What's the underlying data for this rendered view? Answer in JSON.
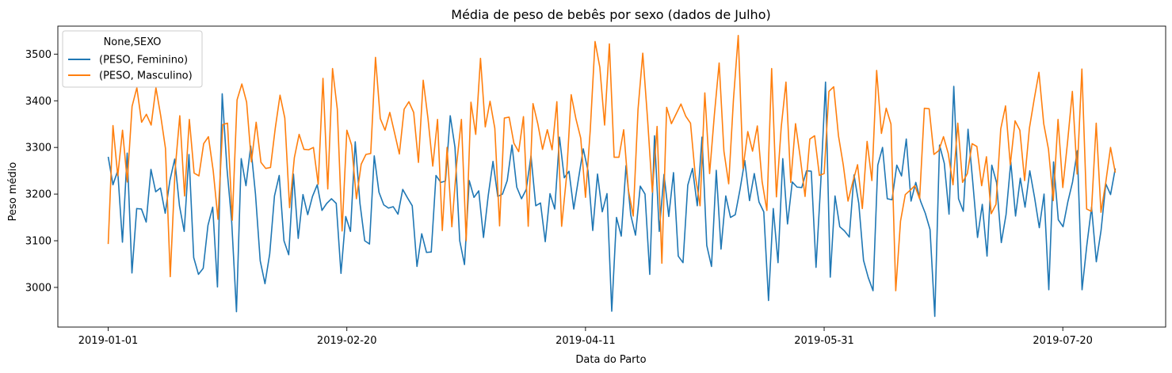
{
  "chart_data": {
    "type": "line",
    "title": "Média de peso de bebês por sexo (dados de Julho)",
    "xlabel": "Data do Parto",
    "ylabel": "Peso médio",
    "x_start": "2019-01-01",
    "x_end": "2019-07-31",
    "x_ticks": [
      "2019-01-01",
      "2019-02-20",
      "2019-04-11",
      "2019-05-31",
      "2019-07-20"
    ],
    "y_ticks": [
      3000,
      3100,
      3200,
      3300,
      3400,
      3500
    ],
    "ylim": [
      2915,
      3560
    ],
    "grid": false,
    "legend": {
      "title": "None,SEXO",
      "placement": "upper-left"
    },
    "series": [
      {
        "name": "(PESO, Feminino)",
        "color": "#1f77b4",
        "values": [
          3280,
          3220,
          3250,
          3097,
          3288,
          3031,
          3169,
          3168,
          3140,
          3253,
          3205,
          3213,
          3159,
          3230,
          3275,
          3175,
          3120,
          3285,
          3064,
          3028,
          3041,
          3133,
          3172,
          3001,
          3415,
          3255,
          3140,
          2948,
          3276,
          3218,
          3303,
          3200,
          3057,
          3008,
          3072,
          3196,
          3240,
          3100,
          3070,
          3243,
          3105,
          3199,
          3156,
          3195,
          3220,
          3165,
          3180,
          3190,
          3180,
          3030,
          3152,
          3120,
          3312,
          3180,
          3100,
          3093,
          3282,
          3204,
          3177,
          3170,
          3173,
          3157,
          3210,
          3192,
          3175,
          3045,
          3115,
          3075,
          3076,
          3240,
          3225,
          3228,
          3368,
          3300,
          3100,
          3049,
          3229,
          3193,
          3207,
          3107,
          3197,
          3270,
          3195,
          3200,
          3229,
          3305,
          3215,
          3190,
          3210,
          3282,
          3175,
          3181,
          3098,
          3201,
          3168,
          3322,
          3235,
          3249,
          3168,
          3233,
          3297,
          3250,
          3122,
          3243,
          3162,
          3201,
          2949,
          3150,
          3110,
          3261,
          3155,
          3112,
          3217,
          3200,
          3028,
          3325,
          3120,
          3242,
          3152,
          3246,
          3067,
          3053,
          3219,
          3255,
          3175,
          3322,
          3090,
          3045,
          3251,
          3082,
          3196,
          3150,
          3156,
          3210,
          3272,
          3186,
          3244,
          3183,
          3162,
          2972,
          3169,
          3053,
          3276,
          3136,
          3226,
          3215,
          3214,
          3250,
          3249,
          3043,
          3225,
          3440,
          3022,
          3196,
          3130,
          3121,
          3108,
          3241,
          3180,
          3058,
          3021,
          2993,
          3262,
          3300,
          3190,
          3188,
          3262,
          3239,
          3318,
          3185,
          3225,
          3185,
          3159,
          3124,
          2938,
          3305,
          3266,
          3157,
          3431,
          3190,
          3163,
          3339,
          3225,
          3107,
          3178,
          3067,
          3262,
          3225,
          3096,
          3156,
          3269,
          3153,
          3234,
          3172,
          3250,
          3193,
          3128,
          3200,
          2995,
          3269,
          3145,
          3130,
          3183,
          3226,
          3293,
          2995,
          3090,
          3172,
          3055,
          3122,
          3222,
          3199,
          3255
        ]
      },
      {
        "name": "(PESO, Masculino)",
        "color": "#ff7f0e",
        "values": [
          3093,
          3347,
          3239,
          3337,
          3226,
          3388,
          3428,
          3354,
          3371,
          3348,
          3428,
          3368,
          3298,
          3023,
          3250,
          3368,
          3196,
          3360,
          3245,
          3239,
          3308,
          3323,
          3250,
          3146,
          3349,
          3352,
          3144,
          3402,
          3436,
          3397,
          3269,
          3354,
          3268,
          3255,
          3257,
          3341,
          3412,
          3363,
          3171,
          3278,
          3328,
          3296,
          3295,
          3300,
          3221,
          3448,
          3211,
          3469,
          3382,
          3121,
          3337,
          3305,
          3190,
          3264,
          3285,
          3287,
          3493,
          3362,
          3337,
          3375,
          3331,
          3286,
          3382,
          3398,
          3375,
          3268,
          3444,
          3362,
          3260,
          3360,
          3122,
          3300,
          3130,
          3264,
          3360,
          3100,
          3397,
          3328,
          3491,
          3344,
          3399,
          3341,
          3132,
          3363,
          3365,
          3309,
          3291,
          3366,
          3131,
          3394,
          3351,
          3296,
          3338,
          3295,
          3398,
          3131,
          3235,
          3413,
          3361,
          3320,
          3193,
          3338,
          3527,
          3472,
          3348,
          3522,
          3279,
          3279,
          3338,
          3208,
          3153,
          3381,
          3502,
          3361,
          3204,
          3345,
          3052,
          3386,
          3351,
          3372,
          3393,
          3367,
          3352,
          3240,
          3175,
          3417,
          3244,
          3370,
          3481,
          3292,
          3222,
          3403,
          3540,
          3255,
          3334,
          3292,
          3346,
          3227,
          3165,
          3469,
          3194,
          3343,
          3440,
          3225,
          3351,
          3278,
          3195,
          3318,
          3325,
          3240,
          3244,
          3420,
          3430,
          3325,
          3263,
          3185,
          3226,
          3263,
          3169,
          3313,
          3229,
          3465,
          3330,
          3384,
          3350,
          2993,
          3142,
          3199,
          3208,
          3218,
          3190,
          3384,
          3383,
          3285,
          3293,
          3323,
          3287,
          3220,
          3352,
          3225,
          3244,
          3308,
          3302,
          3218,
          3280,
          3158,
          3178,
          3340,
          3389,
          3263,
          3357,
          3337,
          3229,
          3341,
          3403,
          3461,
          3351,
          3296,
          3186,
          3360,
          3214,
          3312,
          3420,
          3243,
          3468,
          3168,
          3163,
          3352,
          3161,
          3225,
          3300,
          3246
        ]
      }
    ]
  }
}
